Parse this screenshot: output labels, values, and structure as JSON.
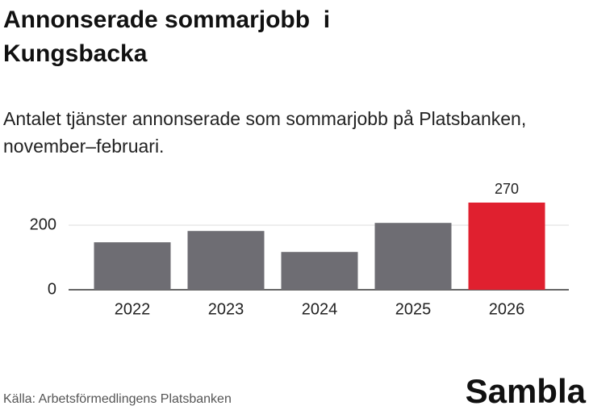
{
  "chart_data": {
    "type": "bar",
    "title": "Annonserade sommarjobb  i Kungsbacka",
    "subtitle": "Antalet tjänster annonserade som sommarjobb på Platsbanken, november–februari.",
    "categories": [
      "2022",
      "2023",
      "2024",
      "2025",
      "2026"
    ],
    "values": [
      147,
      182,
      117,
      207,
      270
    ],
    "value_labels": [
      null,
      null,
      null,
      null,
      "270"
    ],
    "colors": [
      "#6e6d73",
      "#6e6d73",
      "#6e6d73",
      "#6e6d73",
      "#e0202f"
    ],
    "ylim": [
      0,
      300
    ],
    "yticks": [
      0,
      200
    ],
    "grid": true,
    "source": "Källa: Arbetsförmedlingens Platsbanken",
    "logo": "Sambla"
  }
}
